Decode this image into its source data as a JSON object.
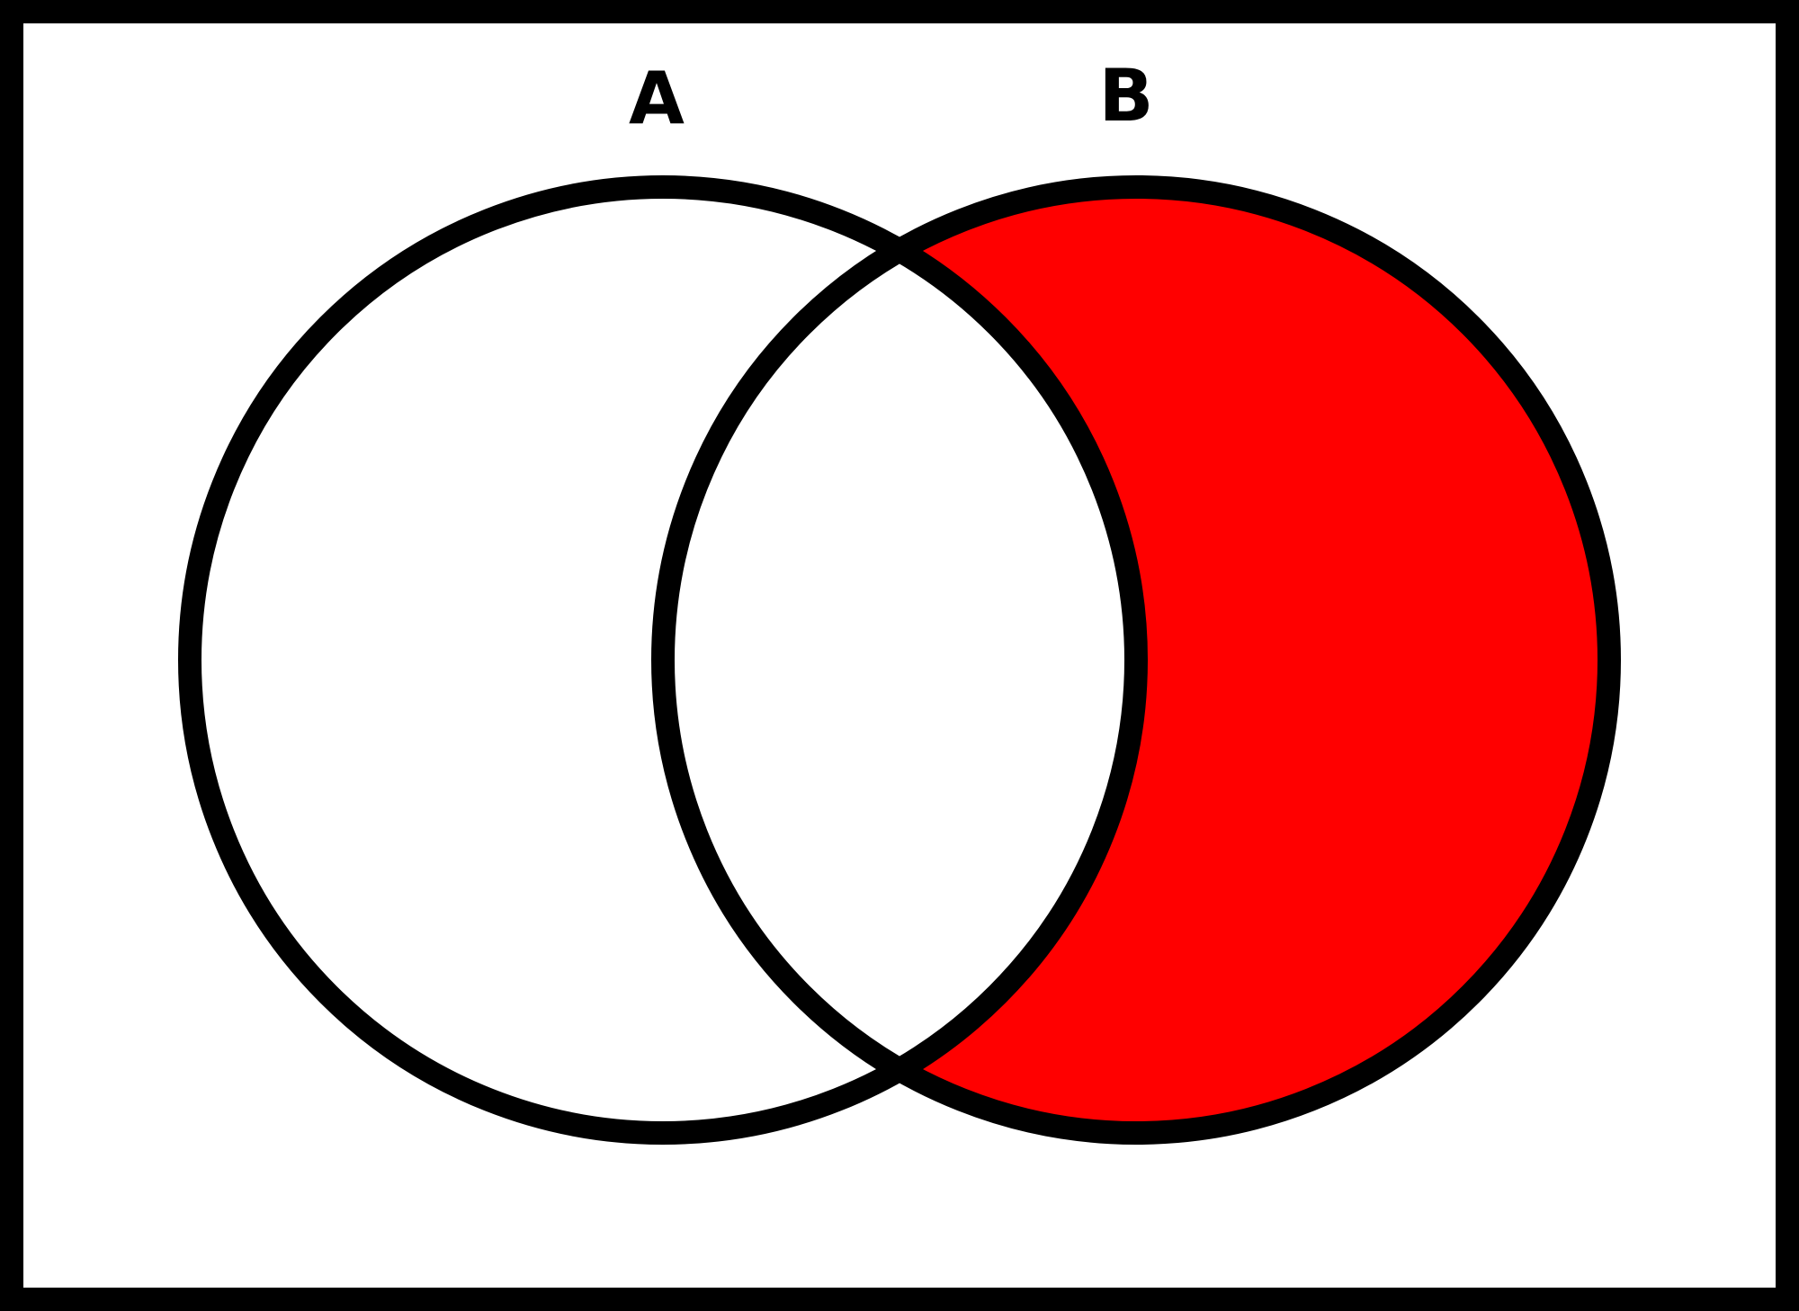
{
  "diagram": {
    "type": "venn",
    "sets": [
      {
        "id": "A",
        "label": "A",
        "shaded": false
      },
      {
        "id": "B",
        "label": "B",
        "shaded": true
      }
    ],
    "shaded_region": "B minus A",
    "colors": {
      "shade": "#ff0000",
      "stroke": "#000000",
      "background": "#ffffff"
    }
  }
}
